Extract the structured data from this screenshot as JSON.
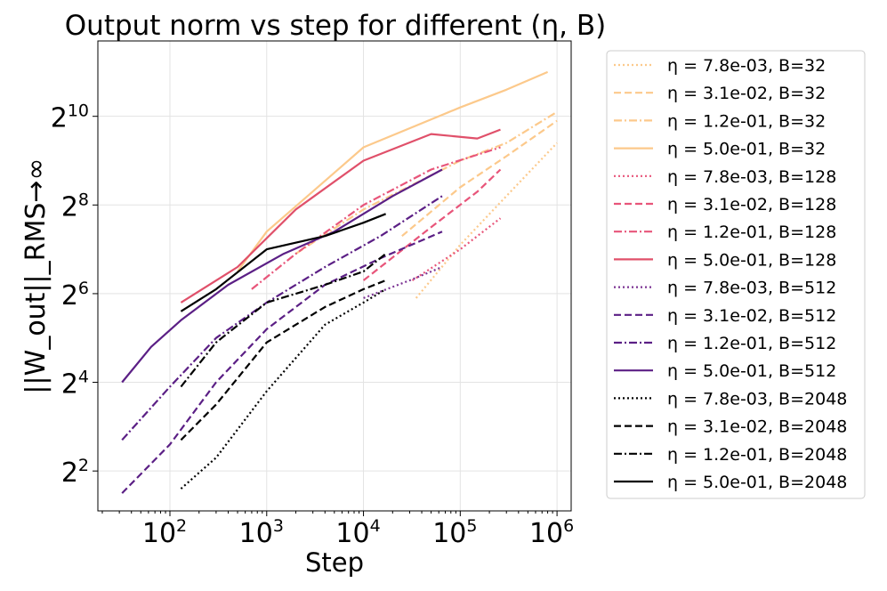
{
  "chart_data": {
    "type": "line",
    "title": "Output norm vs step for different (η, B)",
    "xlabel": "Step",
    "ylabel": "||W_out||_RMS→∞",
    "xscale": "log10",
    "yscale": "log2",
    "xlim": [
      18,
      1400000
    ],
    "ylim": [
      1.1,
      11.7
    ],
    "x_ticks": [
      {
        "base": "10",
        "exp": "2",
        "value": 100
      },
      {
        "base": "10",
        "exp": "3",
        "value": 1000
      },
      {
        "base": "10",
        "exp": "4",
        "value": 10000
      },
      {
        "base": "10",
        "exp": "5",
        "value": 100000
      },
      {
        "base": "10",
        "exp": "6",
        "value": 1000000
      }
    ],
    "y_ticks": [
      {
        "base": "2",
        "exp": "2",
        "value": 2
      },
      {
        "base": "2",
        "exp": "4",
        "value": 4
      },
      {
        "base": "2",
        "exp": "6",
        "value": 6
      },
      {
        "base": "2",
        "exp": "8",
        "value": 8
      },
      {
        "base": "2",
        "exp": "10",
        "value": 10
      }
    ],
    "grid": true,
    "legend_position": "outside-right",
    "series": [
      {
        "name": "η = 7.8e-03, B=32",
        "color": "#fcc98b",
        "dash": "dotted",
        "x": [
          35000,
          100000,
          300000,
          1000000
        ],
        "y": [
          5.9,
          7.1,
          8.2,
          9.4
        ]
      },
      {
        "name": "η = 3.1e-02, B=32",
        "color": "#fcc98b",
        "dash": "dashed",
        "x": [
          25000,
          100000,
          300000,
          1000000
        ],
        "y": [
          7.3,
          8.4,
          9.1,
          9.9
        ]
      },
      {
        "name": "η = 1.2e-01, B=32",
        "color": "#fcc98b",
        "dash": "dashdot",
        "x": [
          2000,
          10000,
          100000,
          300000,
          1000000
        ],
        "y": [
          6.9,
          7.9,
          9.0,
          9.4,
          10.1
        ]
      },
      {
        "name": "η = 5.0e-01, B=32",
        "color": "#fcc98b",
        "dash": "solid",
        "x": [
          500,
          1000,
          10000,
          100000,
          300000,
          800000
        ],
        "y": [
          6.5,
          7.4,
          9.3,
          10.2,
          10.6,
          11.0
        ]
      },
      {
        "name": "η = 7.8e-03, B=128",
        "color": "#e8557a",
        "dash": "dotted",
        "x": [
          32000,
          100000,
          260000
        ],
        "y": [
          6.3,
          7.0,
          7.7
        ]
      },
      {
        "name": "η = 3.1e-02, B=128",
        "color": "#e8557a",
        "dash": "dashed",
        "x": [
          10000,
          50000,
          150000,
          260000
        ],
        "y": [
          6.3,
          7.5,
          8.3,
          8.8
        ]
      },
      {
        "name": "η = 1.2e-01, B=128",
        "color": "#e8557a",
        "dash": "dashdot",
        "x": [
          700,
          2000,
          10000,
          50000,
          260000
        ],
        "y": [
          6.1,
          6.9,
          8.0,
          8.8,
          9.3
        ]
      },
      {
        "name": "η = 5.0e-01, B=128",
        "color": "#e0506a",
        "dash": "solid",
        "x": [
          130,
          500,
          2000,
          10000,
          50000,
          150000,
          260000
        ],
        "y": [
          5.8,
          6.6,
          7.9,
          9.0,
          9.6,
          9.5,
          9.7
        ]
      },
      {
        "name": "η = 7.8e-03, B=512",
        "color": "#7c3494",
        "dash": "dotted",
        "x": [
          10000,
          30000,
          65000
        ],
        "y": [
          5.9,
          6.3,
          6.6
        ]
      },
      {
        "name": "η = 3.1e-02, B=512",
        "color": "#5b1f85",
        "dash": "dashed",
        "x": [
          32,
          100,
          300,
          1000,
          4000,
          15000,
          65000
        ],
        "y": [
          1.5,
          2.6,
          4.0,
          5.2,
          6.2,
          6.8,
          7.4
        ]
      },
      {
        "name": "η = 1.2e-01, B=512",
        "color": "#5b1f85",
        "dash": "dashdot",
        "x": [
          32,
          100,
          300,
          1000,
          4000,
          15000,
          65000
        ],
        "y": [
          2.7,
          3.9,
          5.0,
          5.8,
          6.6,
          7.3,
          8.2
        ]
      },
      {
        "name": "η = 5.0e-01, B=512",
        "color": "#5b1f85",
        "dash": "solid",
        "x": [
          32,
          64,
          130,
          400,
          1500,
          5000,
          20000,
          65000
        ],
        "y": [
          4.0,
          4.8,
          5.4,
          6.2,
          6.9,
          7.4,
          8.2,
          8.8
        ]
      },
      {
        "name": "η = 7.8e-03, B=2048",
        "color": "#000000",
        "dash": "dotted",
        "x": [
          130,
          300,
          1000,
          4000,
          10000,
          17000
        ],
        "y": [
          1.6,
          2.3,
          3.8,
          5.3,
          5.8,
          6.1
        ]
      },
      {
        "name": "η = 3.1e-02, B=2048",
        "color": "#000000",
        "dash": "dashed",
        "x": [
          130,
          300,
          1000,
          4000,
          10000,
          17000
        ],
        "y": [
          2.7,
          3.5,
          4.9,
          5.7,
          6.1,
          6.3
        ]
      },
      {
        "name": "η = 1.2e-01, B=2048",
        "color": "#000000",
        "dash": "dashdot",
        "x": [
          130,
          300,
          1000,
          4000,
          10000,
          17000
        ],
        "y": [
          3.9,
          4.9,
          5.8,
          6.2,
          6.5,
          6.9
        ]
      },
      {
        "name": "η = 5.0e-01, B=2048",
        "color": "#000000",
        "dash": "solid",
        "x": [
          130,
          300,
          1000,
          4000,
          10000,
          17000
        ],
        "y": [
          5.6,
          6.1,
          7.0,
          7.3,
          7.6,
          7.8
        ]
      }
    ]
  }
}
